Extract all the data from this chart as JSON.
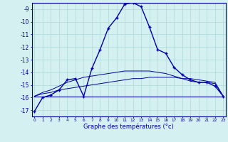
{
  "xlabel": "Graphe des températures (°c)",
  "hours": [
    0,
    1,
    2,
    3,
    4,
    5,
    6,
    7,
    8,
    9,
    10,
    11,
    12,
    13,
    14,
    15,
    16,
    17,
    18,
    19,
    20,
    21,
    22,
    23
  ],
  "line_main": [
    -17.1,
    -16.0,
    -15.8,
    -15.4,
    -14.6,
    -14.5,
    -15.9,
    -13.7,
    -12.2,
    -10.5,
    -9.7,
    -8.6,
    -8.5,
    -8.8,
    -10.4,
    -12.2,
    -12.5,
    -13.6,
    -14.2,
    -14.6,
    -14.8,
    -14.8,
    -15.1,
    -15.9
  ],
  "line_flat1": [
    -15.9,
    -15.9,
    -15.9,
    -15.9,
    -15.9,
    -15.9,
    -15.9,
    -15.9,
    -15.9,
    -15.9,
    -15.9,
    -15.9,
    -15.9,
    -15.9,
    -15.9,
    -15.9,
    -15.9,
    -15.9,
    -15.9,
    -15.9,
    -15.9,
    -15.9,
    -15.9,
    -15.9
  ],
  "line_rising1": [
    -15.9,
    -15.7,
    -15.6,
    -15.4,
    -15.3,
    -15.2,
    -15.1,
    -15.0,
    -14.9,
    -14.8,
    -14.7,
    -14.6,
    -14.5,
    -14.5,
    -14.4,
    -14.4,
    -14.4,
    -14.4,
    -14.5,
    -14.5,
    -14.6,
    -14.7,
    -14.8,
    -15.9
  ],
  "line_rising2": [
    -15.9,
    -15.6,
    -15.4,
    -15.1,
    -14.8,
    -14.6,
    -14.4,
    -14.3,
    -14.2,
    -14.1,
    -14.0,
    -13.9,
    -13.9,
    -13.9,
    -13.9,
    -14.0,
    -14.1,
    -14.3,
    -14.5,
    -14.7,
    -14.8,
    -14.8,
    -14.9,
    -15.9
  ],
  "bg_color": "#d4f0f0",
  "grid_color": "#b0d8d8",
  "line_color": "#0000aa",
  "ylim": [
    -17.5,
    -8.5
  ],
  "yticks": [
    -17,
    -16,
    -15,
    -14,
    -13,
    -12,
    -11,
    -10,
    -9
  ]
}
